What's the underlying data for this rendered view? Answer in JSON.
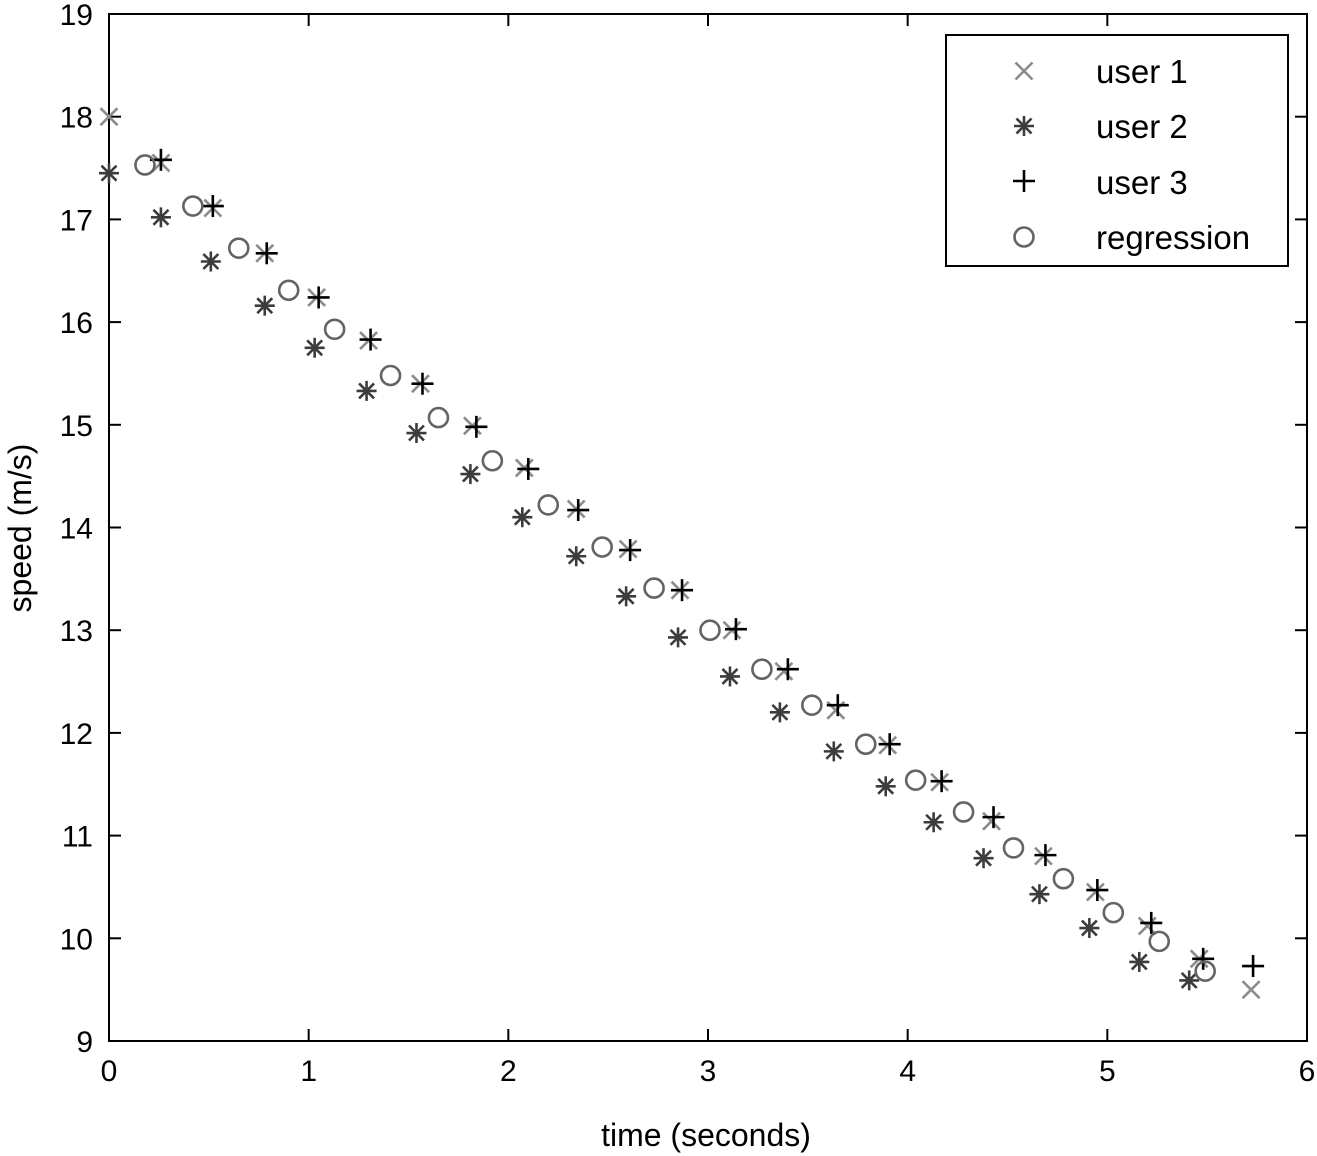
{
  "chart_data": {
    "type": "scatter",
    "xlabel": "time (seconds)",
    "ylabel": "speed (m/s)",
    "xlim": [
      0,
      6
    ],
    "ylim": [
      9,
      19
    ],
    "xticks": [
      "0",
      "1",
      "2",
      "3",
      "4",
      "5",
      "6"
    ],
    "yticks": [
      "9",
      "10",
      "11",
      "12",
      "13",
      "14",
      "15",
      "16",
      "17",
      "18",
      "19"
    ],
    "grid": false,
    "legend_position": "top-right",
    "series": [
      {
        "name": "user 1",
        "marker": "x",
        "color": "#8c8c8c",
        "x": [
          0.0,
          0.26,
          0.52,
          0.78,
          1.04,
          1.3,
          1.56,
          1.82,
          2.08,
          2.34,
          2.6,
          2.86,
          3.12,
          3.38,
          3.64,
          3.9,
          4.16,
          4.42,
          4.68,
          4.94,
          5.2,
          5.46,
          5.72
        ],
        "y": [
          18.0,
          17.55,
          17.11,
          16.67,
          16.24,
          15.82,
          15.4,
          14.99,
          14.58,
          14.18,
          13.79,
          13.39,
          13.0,
          12.6,
          12.22,
          11.88,
          11.52,
          11.14,
          10.8,
          10.45,
          10.12,
          9.8,
          9.5
        ]
      },
      {
        "name": "user 2",
        "marker": "asterisk",
        "color": "#3c3c3c",
        "x": [
          0.0,
          0.26,
          0.51,
          0.78,
          1.03,
          1.29,
          1.54,
          1.81,
          2.07,
          2.34,
          2.59,
          2.85,
          3.11,
          3.36,
          3.63,
          3.89,
          4.13,
          4.38,
          4.66,
          4.91,
          5.16,
          5.41
        ],
        "y": [
          17.45,
          17.02,
          16.59,
          16.16,
          15.75,
          15.33,
          14.92,
          14.52,
          14.1,
          13.72,
          13.33,
          12.93,
          12.55,
          12.2,
          11.82,
          11.48,
          11.13,
          10.78,
          10.43,
          10.1,
          9.77,
          9.59
        ]
      },
      {
        "name": "user 3",
        "marker": "plus",
        "color": "#000000",
        "x": [
          0.26,
          0.52,
          0.79,
          1.05,
          1.31,
          1.57,
          1.84,
          2.1,
          2.35,
          2.61,
          2.87,
          3.14,
          3.4,
          3.65,
          3.91,
          4.17,
          4.43,
          4.69,
          4.95,
          5.22,
          5.48,
          5.73
        ],
        "y": [
          17.58,
          17.13,
          16.67,
          16.24,
          15.83,
          15.4,
          14.98,
          14.57,
          14.17,
          13.78,
          13.39,
          13.01,
          12.62,
          12.27,
          11.89,
          11.53,
          11.18,
          10.81,
          10.47,
          10.15,
          9.8,
          9.73
        ]
      },
      {
        "name": "regression",
        "marker": "circle",
        "color": "#646464",
        "x": [
          0.18,
          0.42,
          0.65,
          0.9,
          1.13,
          1.41,
          1.65,
          1.92,
          2.2,
          2.47,
          2.73,
          3.01,
          3.27,
          3.52,
          3.79,
          4.04,
          4.28,
          4.53,
          4.78,
          5.03,
          5.26,
          5.49
        ],
        "y": [
          17.53,
          17.13,
          16.72,
          16.31,
          15.93,
          15.48,
          15.07,
          14.65,
          14.22,
          13.81,
          13.41,
          13.0,
          12.62,
          12.27,
          11.89,
          11.54,
          11.23,
          10.88,
          10.58,
          10.25,
          9.97,
          9.68
        ]
      }
    ]
  }
}
